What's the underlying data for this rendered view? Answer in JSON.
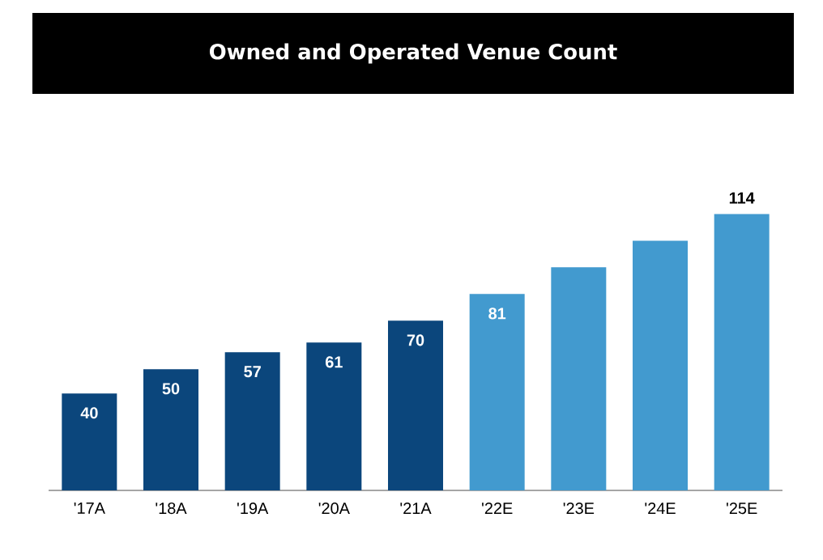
{
  "chart_data": {
    "type": "bar",
    "title": "Owned and Operated Venue Count",
    "categories": [
      "'17A",
      "'18A",
      "'19A",
      "'20A",
      "'21A",
      "'22E",
      "'23E",
      "'24E",
      "'25E"
    ],
    "values": [
      40,
      50,
      57,
      61,
      70,
      81,
      92,
      103,
      114
    ],
    "colors": [
      "#0b467c",
      "#0b467c",
      "#0b467c",
      "#0b467c",
      "#0b467c",
      "#429acf",
      "#429acf",
      "#429acf",
      "#429acf"
    ],
    "value_labels": [
      "40",
      "50",
      "57",
      "61",
      "70",
      "81",
      null,
      null,
      "114"
    ]
  }
}
